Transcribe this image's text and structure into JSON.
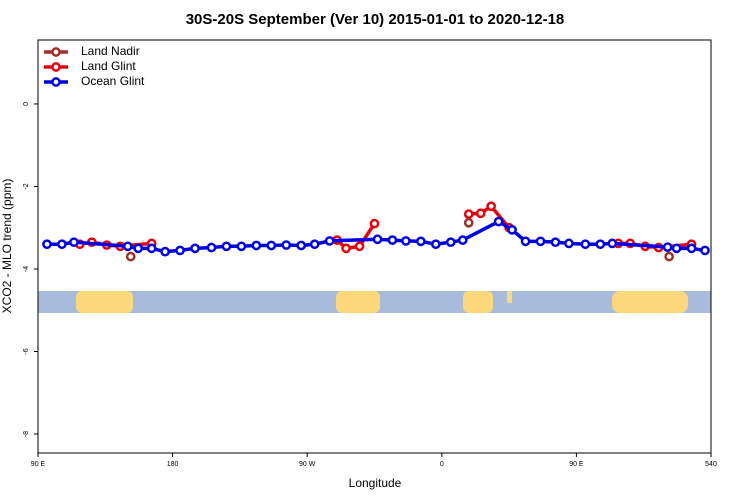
{
  "chart_data": {
    "type": "line",
    "title": "30S-20S September (Ver 10)   2015-01-01 to 2020-12-18",
    "x_label": "Longitude",
    "y_label": "XCO2 - MLO trend (ppm)",
    "xlim": [
      90,
      540
    ],
    "ylim": [
      -8.46,
      1.55
    ],
    "xticks": [
      {
        "value": 90,
        "label": "90 E"
      },
      180,
      {
        "value": 270,
        "label": "90 W"
      },
      {
        "value": 360,
        "label": "0"
      },
      {
        "value": 450,
        "label": "90 E"
      },
      540
    ],
    "yticks": [
      0,
      -2,
      -4,
      -6,
      -8
    ],
    "legend": "top-left",
    "series": [
      {
        "name": "Land Nadir",
        "color": "#a0302a",
        "x": [
          152,
          null,
          378,
          null,
          512
        ],
        "values": [
          -3.7,
          null,
          -2.88,
          null,
          -3.7
        ]
      },
      {
        "name": "Land Glint",
        "color": "#e8000b",
        "x": [
          118,
          126,
          136,
          145,
          166,
          null,
          290,
          296,
          305,
          315,
          null,
          378,
          386,
          393,
          405,
          null,
          478,
          486,
          496,
          505,
          527
        ],
        "values": [
          -3.4,
          -3.35,
          -3.42,
          -3.45,
          -3.38,
          null,
          -3.3,
          -3.5,
          -3.45,
          -2.9,
          null,
          -2.67,
          -2.65,
          -2.48,
          -3.0,
          null,
          -3.38,
          -3.38,
          -3.45,
          -3.48,
          -3.4
        ]
      },
      {
        "name": "Ocean Glint",
        "color": "#0000e8",
        "x": [
          96,
          106,
          114,
          150,
          157,
          166,
          175,
          185,
          195,
          206,
          216,
          226,
          236,
          246,
          256,
          266,
          275,
          285,
          317,
          327,
          336,
          346,
          356,
          366,
          374,
          398,
          407,
          416,
          426,
          436,
          445,
          456,
          466,
          474,
          511,
          517,
          527,
          536
        ],
        "values": [
          -3.4,
          -3.4,
          -3.35,
          -3.45,
          -3.5,
          -3.5,
          -3.58,
          -3.55,
          -3.5,
          -3.48,
          -3.45,
          -3.45,
          -3.43,
          -3.43,
          -3.42,
          -3.43,
          -3.4,
          -3.32,
          -3.28,
          -3.3,
          -3.32,
          -3.33,
          -3.4,
          -3.35,
          -3.3,
          -2.85,
          -3.05,
          -3.33,
          -3.33,
          -3.35,
          -3.38,
          -3.4,
          -3.4,
          -3.38,
          -3.47,
          -3.5,
          -3.5,
          -3.55
        ]
      }
    ]
  }
}
